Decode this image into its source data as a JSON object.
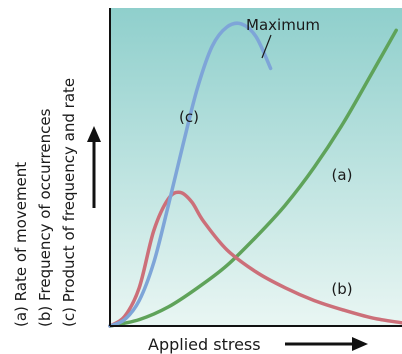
{
  "chart_data": {
    "type": "line",
    "title": "",
    "xlabel": "Applied stress",
    "ylabels": [
      "(a) Rate of movement",
      "(b) Frequency of occurrences",
      "(c) Product of frequency and rate"
    ],
    "xlim": [
      0,
      100
    ],
    "ylim": [
      0,
      100
    ],
    "grid": false,
    "annotation": "Maximum",
    "colors": {
      "background_top": "#8fcfcc",
      "background_bottom": "#e9f6f3",
      "series_a": "#5fa35a",
      "series_b": "#cc6f79",
      "series_c": "#7ea5d8"
    },
    "series": [
      {
        "name": "(a)",
        "x": [
          0,
          10,
          20,
          30,
          40,
          50,
          60,
          70,
          80,
          90,
          98
        ],
        "y": [
          0,
          2,
          6,
          12,
          19,
          28,
          38,
          50,
          64,
          80,
          93
        ]
      },
      {
        "name": "(b)",
        "x": [
          0,
          5,
          10,
          15,
          20,
          24,
          28,
          32,
          40,
          50,
          60,
          70,
          80,
          90,
          100
        ],
        "y": [
          0,
          3,
          12,
          30,
          40,
          42,
          39,
          33,
          24,
          17,
          12,
          8,
          5,
          2.5,
          1
        ]
      },
      {
        "name": "(c)",
        "x": [
          0,
          5,
          10,
          15,
          20,
          25,
          30,
          35,
          40,
          45,
          50,
          55
        ],
        "y": [
          0,
          2,
          8,
          20,
          38,
          57,
          75,
          88,
          94,
          95,
          91,
          81
        ]
      }
    ]
  }
}
